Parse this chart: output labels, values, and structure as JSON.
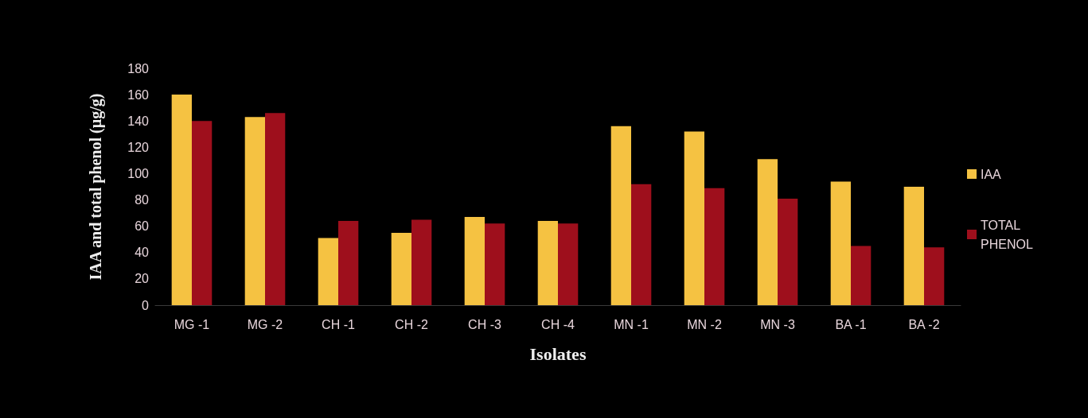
{
  "chart_data": {
    "type": "bar",
    "xlabel": "Isolates",
    "ylabel": "IAA and total phenol (µg/g)",
    "categories": [
      "MG -1",
      "MG -2",
      "CH -1",
      "CH -2",
      "CH -3",
      "CH -4",
      "MN -1",
      "MN -2",
      "MN -3",
      "BA -1",
      "BA -2"
    ],
    "series": [
      {
        "name": "IAA",
        "color": "#f5c242",
        "values": [
          160,
          143,
          51,
          55,
          67,
          64,
          136,
          132,
          111,
          94,
          90
        ]
      },
      {
        "name": "TOTAL PHENOL",
        "color": "#9e0f1c",
        "values": [
          140,
          146,
          64,
          65,
          62,
          62,
          92,
          89,
          81,
          45,
          44
        ]
      }
    ],
    "ylim": [
      0,
      180
    ],
    "yticks": [
      0,
      20,
      40,
      60,
      80,
      100,
      120,
      140,
      160,
      180
    ],
    "grid": false,
    "legend": "right"
  }
}
